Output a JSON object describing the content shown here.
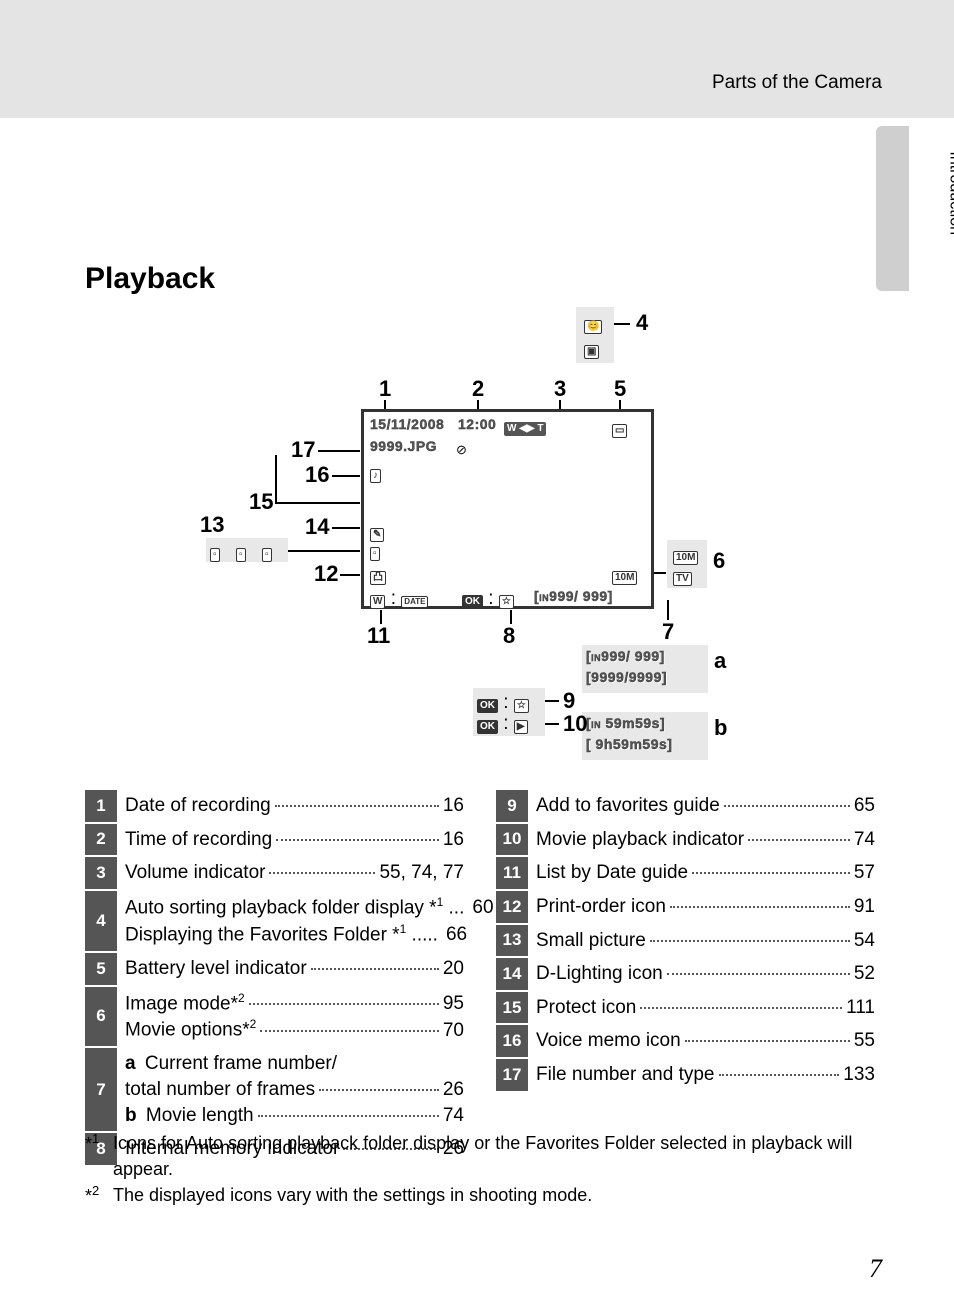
{
  "breadcrumb": "Parts of the Camera",
  "side_tab": "Introduction",
  "heading": "Playback",
  "page_number": "7",
  "diagram": {
    "callouts": [
      "1",
      "2",
      "3",
      "4",
      "5",
      "6",
      "7",
      "8",
      "9",
      "10",
      "11",
      "12",
      "13",
      "14",
      "15",
      "16",
      "17"
    ],
    "callout_letters": [
      "a",
      "b"
    ],
    "lcd": {
      "date": "15/11/2008",
      "time": "12:00",
      "filename": "9999.JPG",
      "counter": "999/  999",
      "wbt": "W ◀▶ T"
    },
    "ghost_a1": "999/  999",
    "ghost_a2": "9999/9999",
    "ghost_b1": "   59m59s",
    "ghost_b2": " 9h59m59s",
    "badge_10m": "10M",
    "badge_tv": "TV"
  },
  "left_rows": [
    {
      "n": "1",
      "lines": [
        {
          "label": "Date of recording",
          "page": "16"
        }
      ]
    },
    {
      "n": "2",
      "lines": [
        {
          "label": "Time of recording",
          "page": "16"
        }
      ]
    },
    {
      "n": "3",
      "lines": [
        {
          "label": "Volume indicator",
          "page": "55, 74, 77"
        }
      ]
    },
    {
      "n": "4",
      "lines": [
        {
          "label": "Auto sorting playback folder display *",
          "sup": "1",
          "suffix": " ...",
          "page": "60"
        },
        {
          "label": "Displaying the Favorites Folder *",
          "sup": "1",
          "suffix": " .....",
          "page": "66"
        }
      ]
    },
    {
      "n": "5",
      "lines": [
        {
          "label": "Battery level indicator",
          "page": "20"
        }
      ]
    },
    {
      "n": "6",
      "lines": [
        {
          "label": "Image mode*",
          "sup": "2",
          "page": "95"
        },
        {
          "label": "Movie options*",
          "sup": "2",
          "page": "70"
        }
      ]
    },
    {
      "n": "7",
      "lines": [
        {
          "sub": "a",
          "label": "  Current frame number/",
          "nobreak": true
        },
        {
          "label": "        total number of frames",
          "page": "26"
        },
        {
          "sub": "b",
          "label": "  Movie length",
          "page": "74"
        }
      ]
    },
    {
      "n": "8",
      "lines": [
        {
          "label": "Internal memory indicator",
          "page": "26"
        }
      ]
    }
  ],
  "right_rows": [
    {
      "n": "9",
      "lines": [
        {
          "label": "Add to favorites guide",
          "page": "65"
        }
      ]
    },
    {
      "n": "10",
      "lines": [
        {
          "label": "Movie playback indicator",
          "page": "74"
        }
      ]
    },
    {
      "n": "11",
      "lines": [
        {
          "label": "List by Date guide",
          "page": "57"
        }
      ]
    },
    {
      "n": "12",
      "lines": [
        {
          "label": "Print-order icon",
          "page": "91"
        }
      ]
    },
    {
      "n": "13",
      "lines": [
        {
          "label": "Small picture",
          "page": "54"
        }
      ]
    },
    {
      "n": "14",
      "lines": [
        {
          "label": "D-Lighting icon",
          "page": "52"
        }
      ]
    },
    {
      "n": "15",
      "lines": [
        {
          "label": "Protect icon",
          "page": "111"
        }
      ]
    },
    {
      "n": "16",
      "lines": [
        {
          "label": "Voice memo icon",
          "page": "55"
        }
      ]
    },
    {
      "n": "17",
      "lines": [
        {
          "label": "File number and type",
          "page": "133"
        }
      ]
    }
  ],
  "footnotes": [
    {
      "mark": "*",
      "sup": "1",
      "text": "Icons for Auto sorting playback folder display or the Favorites Folder selected in playback will appear."
    },
    {
      "mark": "*",
      "sup": "2",
      "text": "The displayed icons vary with the settings in shooting mode."
    }
  ],
  "colors": {
    "header_bg": "#e4e4e4",
    "tab_bg": "#cfcfcf",
    "num_cell_bg": "#555555",
    "ghost_bg": "#e8e8e8"
  }
}
